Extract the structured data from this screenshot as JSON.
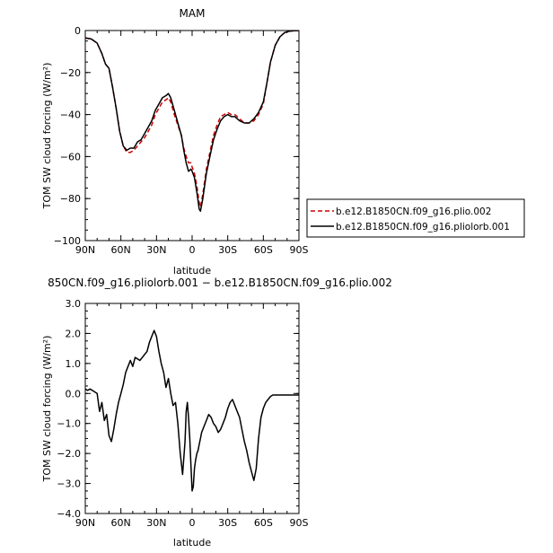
{
  "chart_data": [
    {
      "type": "line",
      "title": "MAM",
      "xlabel": "latitude",
      "ylabel": "TOM  SW  cloud  forcing  (W/m²)",
      "xlim": [
        90,
        -90
      ],
      "ylim": [
        -100,
        0
      ],
      "x_ticks": [
        90,
        60,
        30,
        0,
        -30,
        -60,
        -90
      ],
      "x_tick_labels": [
        "90N",
        "60N",
        "30N",
        "0",
        "30S",
        "60S",
        "90S"
      ],
      "y_ticks": [
        0,
        -20,
        -40,
        -60,
        -80,
        -100
      ],
      "y_tick_labels": [
        "0",
        "−20",
        "−40",
        "−60",
        "−80",
        "−100"
      ],
      "grid": false,
      "legend_position": "outside-right",
      "series": [
        {
          "name": "b.e12.B1850CN.f09_g16.plio.002",
          "color": "#cc0000",
          "dash": "dashed",
          "x": [
            90,
            85,
            80,
            76,
            73,
            70,
            67,
            64,
            61,
            58,
            55,
            52,
            49,
            46,
            43,
            40,
            37,
            34,
            31,
            28,
            25,
            22,
            20,
            18,
            15,
            12,
            9,
            7,
            5,
            3,
            1,
            0,
            -2,
            -4,
            -6,
            -7,
            -9,
            -12,
            -15,
            -18,
            -21,
            -24,
            -27,
            -30,
            -33,
            -36,
            -40,
            -44,
            -48,
            -52,
            -56,
            -60,
            -63,
            -66,
            -70,
            -74,
            -78,
            -82,
            -86,
            -90
          ],
          "y": [
            -3.5,
            -4,
            -6,
            -11,
            -16,
            -18,
            -27,
            -37,
            -48,
            -55,
            -58,
            -58,
            -57,
            -55,
            -53,
            -51,
            -48,
            -45,
            -40,
            -37,
            -34,
            -33,
            -32,
            -34,
            -40,
            -45,
            -50,
            -56,
            -60,
            -63,
            -63,
            -65,
            -68,
            -74,
            -82,
            -84,
            -78,
            -66,
            -58,
            -50,
            -45,
            -41,
            -40,
            -39,
            -40,
            -40,
            -42,
            -44,
            -44,
            -43,
            -40,
            -35,
            -25,
            -15,
            -7,
            -3,
            -1,
            -0.3,
            -0.1,
            0
          ]
        },
        {
          "name": "b.e12.B1850CN.f09_g16.pliolorb.001",
          "color": "#000000",
          "dash": "solid",
          "x": [
            90,
            85,
            80,
            76,
            73,
            70,
            67,
            64,
            61,
            58,
            55,
            52,
            49,
            46,
            43,
            40,
            37,
            34,
            31,
            28,
            25,
            22,
            20,
            18,
            15,
            12,
            9,
            7,
            5,
            3,
            1,
            0,
            -2,
            -4,
            -6,
            -7,
            -9,
            -12,
            -15,
            -18,
            -21,
            -24,
            -27,
            -30,
            -33,
            -36,
            -40,
            -44,
            -48,
            -52,
            -56,
            -60,
            -63,
            -66,
            -70,
            -74,
            -78,
            -82,
            -86,
            -90
          ],
          "y": [
            -3.5,
            -4,
            -6,
            -11,
            -16,
            -18,
            -27,
            -37,
            -48,
            -55,
            -57,
            -56,
            -56,
            -53,
            -52,
            -49,
            -46,
            -43,
            -38,
            -35,
            -32,
            -31,
            -30,
            -32,
            -38,
            -44,
            -50,
            -57,
            -63,
            -67,
            -66,
            -67,
            -70,
            -77,
            -85,
            -86,
            -80,
            -68,
            -60,
            -52,
            -47,
            -43,
            -41,
            -40,
            -41,
            -41,
            -43,
            -44,
            -44,
            -42,
            -39,
            -34,
            -25,
            -15,
            -7,
            -3,
            -1,
            -0.3,
            -0.1,
            0
          ]
        }
      ]
    },
    {
      "type": "line",
      "title": "850CN.f09_g16.pliolorb.001  −  b.e12.B1850CN.f09_g16.plio.002",
      "xlabel": "latitude",
      "ylabel": "TOM  SW  cloud  forcing  (W/m²)",
      "xlim": [
        90,
        -90
      ],
      "ylim": [
        -4.0,
        3.0
      ],
      "x_ticks": [
        90,
        60,
        30,
        0,
        -30,
        -60,
        -90
      ],
      "x_tick_labels": [
        "90N",
        "60N",
        "30N",
        "0",
        "30S",
        "60S",
        "90S"
      ],
      "y_ticks": [
        3,
        2,
        1,
        0,
        -1,
        -2,
        -3,
        -4
      ],
      "y_tick_labels": [
        "3.0",
        "2.0",
        "1.0",
        "0.0",
        "−1.0",
        "−2.0",
        "−3.0",
        "−4.0"
      ],
      "grid": false,
      "series": [
        {
          "color": "#000000",
          "dash": "solid",
          "x": [
            90,
            88,
            86,
            84,
            82,
            80,
            78,
            76,
            74,
            72,
            70,
            68,
            66,
            64,
            62,
            60,
            58,
            56,
            54,
            52,
            50,
            48,
            46,
            44,
            42,
            40,
            38,
            36,
            34,
            32,
            30,
            28,
            26,
            24,
            22,
            20,
            18,
            16,
            14,
            12,
            10,
            8,
            6,
            5,
            4,
            3,
            2,
            1,
            0,
            -1,
            -2,
            -3,
            -4,
            -5,
            -6,
            -7,
            -8,
            -10,
            -12,
            -14,
            -16,
            -18,
            -20,
            -22,
            -24,
            -26,
            -28,
            -30,
            -32,
            -34,
            -36,
            -38,
            -40,
            -42,
            -44,
            -46,
            -48,
            -50,
            -52,
            -54,
            -56,
            -58,
            -60,
            -62,
            -64,
            -66,
            -68,
            -70,
            -72,
            -74,
            -76,
            -78,
            -80,
            -82,
            -84,
            -86,
            -88,
            -90
          ],
          "y": [
            0.15,
            0.1,
            0.15,
            0.1,
            0.05,
            0.0,
            -0.6,
            -0.3,
            -0.9,
            -0.7,
            -1.4,
            -1.6,
            -1.2,
            -0.7,
            -0.3,
            0.0,
            0.3,
            0.7,
            0.9,
            1.1,
            0.9,
            1.2,
            1.15,
            1.1,
            1.2,
            1.3,
            1.4,
            1.7,
            1.9,
            2.1,
            1.9,
            1.4,
            1.0,
            0.7,
            0.2,
            0.5,
            0.0,
            -0.4,
            -0.3,
            -1.0,
            -2.0,
            -2.7,
            -1.6,
            -0.6,
            -0.3,
            -0.8,
            -1.5,
            -2.4,
            -3.25,
            -3.1,
            -2.5,
            -2.2,
            -2.0,
            -1.9,
            -1.7,
            -1.5,
            -1.3,
            -1.1,
            -0.9,
            -0.7,
            -0.8,
            -1.0,
            -1.1,
            -1.3,
            -1.2,
            -1.0,
            -0.8,
            -0.5,
            -0.3,
            -0.2,
            -0.4,
            -0.6,
            -0.8,
            -1.2,
            -1.6,
            -1.9,
            -2.3,
            -2.6,
            -2.9,
            -2.5,
            -1.5,
            -0.8,
            -0.5,
            -0.3,
            -0.2,
            -0.1,
            -0.05,
            -0.05,
            -0.05,
            -0.05,
            -0.05,
            -0.05,
            -0.05,
            -0.05,
            -0.05,
            -0.05,
            -0.05,
            -0.05
          ]
        }
      ]
    }
  ]
}
